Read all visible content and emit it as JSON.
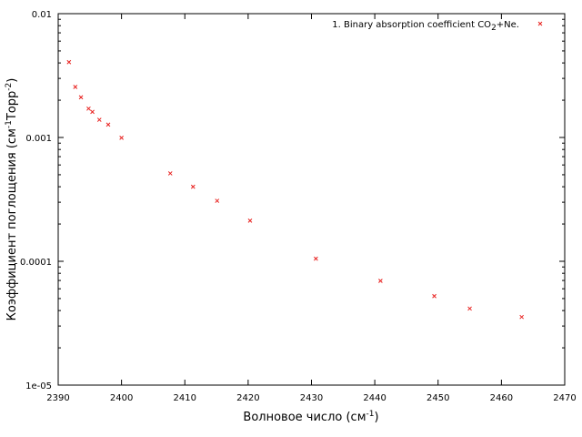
{
  "chart_data": {
    "type": "scatter",
    "xlabel": "Волновое число (см",
    "xlabel_sup": "-1",
    "xlabel_end": ")",
    "ylabel": "Коэффициент поглощения (см",
    "ylabel_sup1": "-1",
    "ylabel_mid": "Торр",
    "ylabel_sup2": "-2",
    "ylabel_end": ")",
    "xlim": [
      2390,
      2470
    ],
    "ylim": [
      1e-05,
      0.01
    ],
    "yscale": "log",
    "grid": false,
    "legend_position": "top-right",
    "x_ticks": [
      2390,
      2400,
      2410,
      2420,
      2430,
      2440,
      2450,
      2460,
      2470
    ],
    "x_tick_labels": [
      "2390",
      "2400",
      "2410",
      "2420",
      "2430",
      "2440",
      "2450",
      "2460",
      "2470"
    ],
    "y_ticks": [
      1e-05,
      0.0001,
      0.001,
      0.01
    ],
    "y_tick_labels": [
      "1e-05",
      "0.0001",
      "0.001",
      "0.01"
    ],
    "series": [
      {
        "name": "1. Binary absorption coefficient CO",
        "name_sub": "2",
        "name_end": "+Ne.",
        "color": "#e8201e",
        "marker": "x",
        "x": [
          2391.7,
          2392.7,
          2393.6,
          2394.8,
          2395.4,
          2396.5,
          2397.9,
          2400.0,
          2407.7,
          2411.3,
          2415.1,
          2420.3,
          2430.7,
          2440.9,
          2449.4,
          2455.0,
          2463.2
        ],
        "y": [
          0.00406,
          0.00256,
          0.00211,
          0.00171,
          0.00161,
          0.00139,
          0.00127,
          0.000993,
          0.000513,
          0.0004,
          0.000308,
          0.000213,
          0.000105,
          6.95e-05,
          5.23e-05,
          4.15e-05,
          3.55e-05
        ]
      }
    ]
  }
}
